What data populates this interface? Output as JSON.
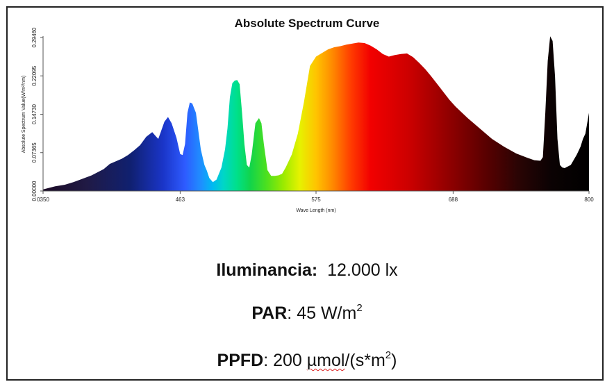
{
  "chart_data": {
    "type": "area",
    "title": "Absolute Spectrum Curve",
    "xlabel": "Wave Length (nm)",
    "ylabel": "Absolute Spectrum Value(W/m²/nm)",
    "xlim": [
      350,
      800
    ],
    "ylim": [
      0,
      0.2946
    ],
    "x_ticks": [
      "0350",
      "463",
      "575",
      "688",
      "800"
    ],
    "y_ticks": [
      "0.00000",
      "0.07365",
      "0.14730",
      "0.22095",
      "0.29460"
    ],
    "x_tick_values": [
      350,
      463,
      575,
      688,
      800
    ],
    "y_tick_values": [
      0,
      0.07365,
      0.1473,
      0.22095,
      0.2946
    ],
    "grid": false,
    "fill": "wavelength-colored",
    "series": [
      {
        "x": [
          350,
          355,
          360,
          368,
          375,
          382,
          390,
          400,
          405,
          410,
          415,
          420,
          425,
          430,
          435,
          440,
          443,
          445,
          447,
          450,
          453,
          456,
          460,
          463,
          465,
          467,
          469,
          471,
          473,
          476,
          480,
          483,
          485,
          487,
          490,
          493,
          497,
          500,
          502,
          504,
          506,
          508,
          510,
          512,
          514,
          516,
          518,
          520,
          522,
          525,
          528,
          530,
          532,
          535,
          538,
          541,
          544,
          547,
          550,
          555,
          560,
          565,
          570,
          575,
          580,
          585,
          590,
          595,
          600,
          605,
          610,
          615,
          620,
          625,
          630,
          635,
          640,
          645,
          650,
          655,
          660,
          665,
          670,
          675,
          680,
          685,
          690,
          700,
          710,
          720,
          730,
          740,
          750,
          755,
          760,
          762,
          764,
          766,
          768,
          770,
          772,
          774,
          776,
          778,
          780,
          785,
          790,
          793,
          795,
          797,
          800
        ],
        "y": [
          0.003,
          0.006,
          0.009,
          0.012,
          0.017,
          0.023,
          0.03,
          0.042,
          0.052,
          0.057,
          0.062,
          0.069,
          0.078,
          0.088,
          0.104,
          0.113,
          0.105,
          0.1,
          0.113,
          0.133,
          0.142,
          0.13,
          0.102,
          0.071,
          0.069,
          0.09,
          0.15,
          0.17,
          0.168,
          0.15,
          0.08,
          0.05,
          0.039,
          0.025,
          0.017,
          0.022,
          0.045,
          0.08,
          0.12,
          0.18,
          0.207,
          0.212,
          0.213,
          0.205,
          0.15,
          0.09,
          0.05,
          0.045,
          0.07,
          0.13,
          0.14,
          0.13,
          0.09,
          0.04,
          0.029,
          0.029,
          0.03,
          0.033,
          0.045,
          0.07,
          0.11,
          0.17,
          0.24,
          0.258,
          0.265,
          0.272,
          0.276,
          0.278,
          0.281,
          0.283,
          0.285,
          0.284,
          0.279,
          0.272,
          0.263,
          0.258,
          0.261,
          0.263,
          0.264,
          0.257,
          0.246,
          0.234,
          0.22,
          0.205,
          0.19,
          0.175,
          0.162,
          0.14,
          0.12,
          0.1,
          0.085,
          0.072,
          0.063,
          0.059,
          0.058,
          0.065,
          0.15,
          0.25,
          0.297,
          0.288,
          0.22,
          0.1,
          0.05,
          0.045,
          0.044,
          0.05,
          0.07,
          0.085,
          0.1,
          0.11,
          0.15
        ]
      }
    ]
  },
  "metrics": {
    "illuminance": {
      "label": "Iluminancia:",
      "value": "12.000 lx"
    },
    "par": {
      "label": "PAR",
      "value": "45 W/m",
      "sup": "2"
    },
    "ppfd": {
      "label": "PPFD",
      "value_pre": "200 ",
      "unit_word": "µmol",
      "value_mid": "/(s*m",
      "sup": "2",
      "value_post": ")"
    }
  }
}
